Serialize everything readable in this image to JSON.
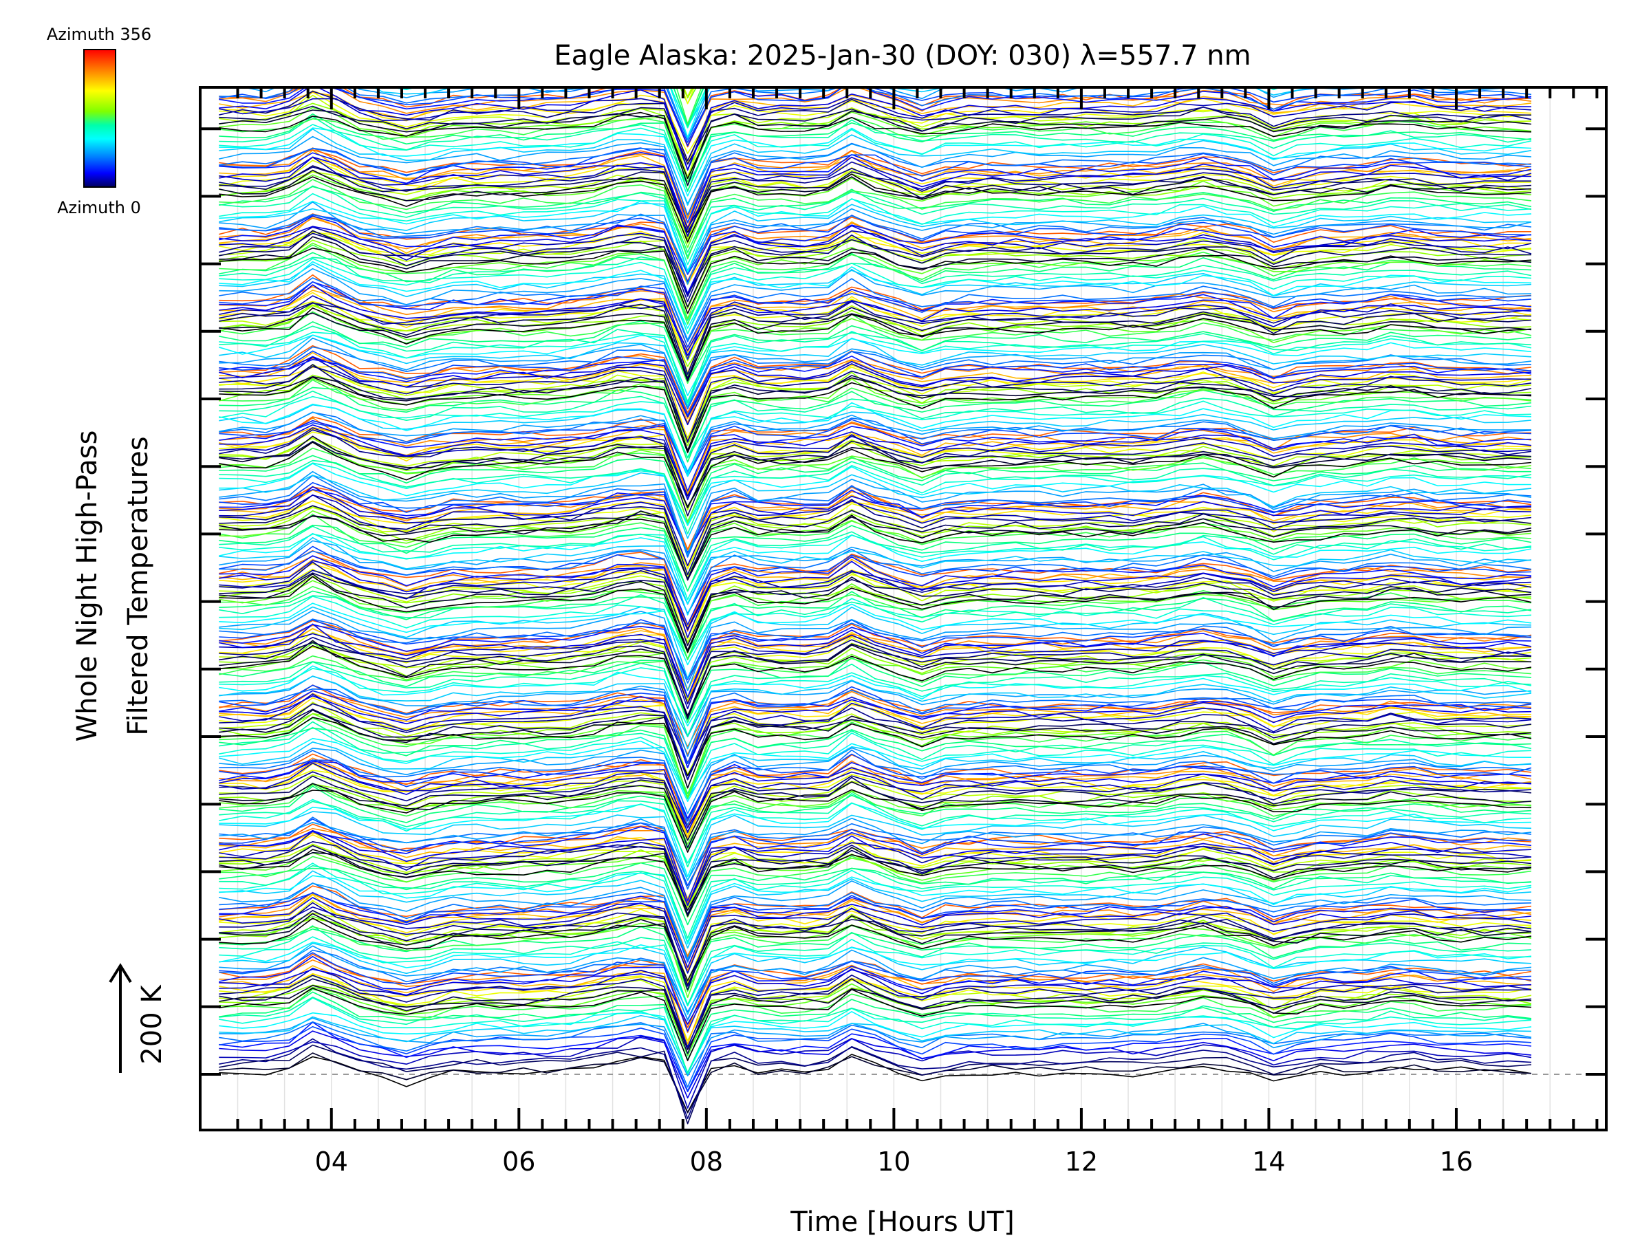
{
  "chart_data": {
    "type": "line",
    "title": "Eagle Alaska: 2025-Jan-30 (DOY: 030) λ=557.7 nm",
    "xlabel": "Time [Hours UT]",
    "ylabel_line1": "Whole Night High-Pass",
    "ylabel_line2": "Filtered Temperatures",
    "scale_label": "200 K",
    "xlim": [
      2.6,
      17.6
    ],
    "x_ticks": [
      "04",
      "06",
      "08",
      "10",
      "12",
      "14",
      "16"
    ],
    "x_tick_values": [
      4,
      6,
      8,
      10,
      12,
      14,
      16
    ],
    "x_start": 2.8,
    "x_end": 17.0,
    "x_step": 0.25,
    "spike_x": 7.85,
    "stack_count": 15,
    "stack_offset_K": 100,
    "colorbar": {
      "top_label": "Azimuth 356",
      "bottom_label": "Azimuth 0",
      "colors": [
        "#ff0000",
        "#ff8000",
        "#ffff00",
        "#80ff00",
        "#00ff80",
        "#00ffff",
        "#0080ff",
        "#0000ff",
        "#000080",
        "#000000"
      ]
    },
    "baseline": "dashed gray at bottom trace"
  }
}
